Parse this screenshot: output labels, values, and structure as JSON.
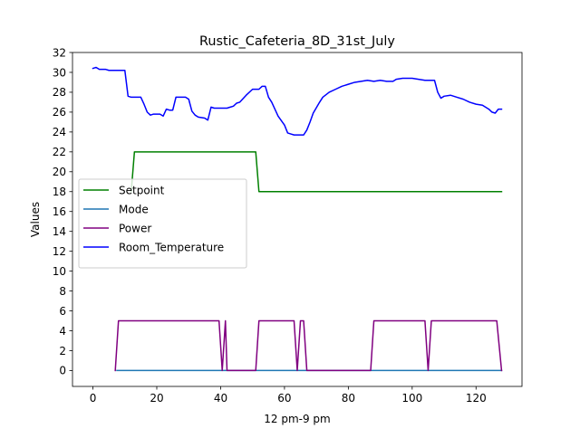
{
  "chart_data": {
    "type": "line",
    "title": "Rustic_Cafeteria_8D_31st_July",
    "xlabel": "12 pm-9 pm",
    "ylabel": "Values",
    "xlim": [
      -6.4,
      134.4
    ],
    "ylim": [
      -1.6,
      32
    ],
    "xticks": [
      0,
      20,
      40,
      60,
      80,
      100,
      120
    ],
    "yticks": [
      0,
      2,
      4,
      6,
      8,
      10,
      12,
      14,
      16,
      18,
      20,
      22,
      24,
      26,
      28,
      30,
      32
    ],
    "grid": false,
    "legend_position": "center-left",
    "series": [
      {
        "name": "Setpoint",
        "color": "#008000",
        "points": [
          [
            12,
            18
          ],
          [
            13,
            22
          ],
          [
            51,
            22
          ],
          [
            52,
            18
          ],
          [
            128,
            18
          ]
        ]
      },
      {
        "name": "Mode",
        "color": "#1f77b4",
        "points": [
          [
            7.5,
            0
          ],
          [
            128,
            0
          ]
        ]
      },
      {
        "name": "Power",
        "color": "#800080",
        "points": [
          [
            7,
            0
          ],
          [
            8,
            5
          ],
          [
            39.5,
            5
          ],
          [
            40.5,
            0
          ],
          [
            41.5,
            5
          ],
          [
            42,
            0
          ],
          [
            51,
            0
          ],
          [
            52,
            5
          ],
          [
            63,
            5
          ],
          [
            64,
            0
          ],
          [
            65,
            5
          ],
          [
            66,
            5
          ],
          [
            67,
            0
          ],
          [
            87,
            0
          ],
          [
            88,
            5
          ],
          [
            104,
            5
          ],
          [
            105,
            0
          ],
          [
            106,
            5
          ],
          [
            126.5,
            5
          ],
          [
            128,
            0
          ]
        ]
      },
      {
        "name": "Room_Temperature",
        "color": "#0000ff",
        "points": [
          [
            0,
            30.4
          ],
          [
            1,
            30.5
          ],
          [
            2,
            30.3
          ],
          [
            4,
            30.3
          ],
          [
            5,
            30.2
          ],
          [
            10,
            30.2
          ],
          [
            11,
            27.6
          ],
          [
            12,
            27.5
          ],
          [
            15,
            27.5
          ],
          [
            16,
            26.8
          ],
          [
            17,
            26.0
          ],
          [
            18,
            25.7
          ],
          [
            19,
            25.8
          ],
          [
            21,
            25.8
          ],
          [
            22,
            25.6
          ],
          [
            23,
            26.3
          ],
          [
            24,
            26.2
          ],
          [
            25,
            26.2
          ],
          [
            26,
            27.5
          ],
          [
            29,
            27.5
          ],
          [
            30,
            27.3
          ],
          [
            31,
            26.1
          ],
          [
            32,
            25.7
          ],
          [
            33,
            25.5
          ],
          [
            35,
            25.4
          ],
          [
            36,
            25.2
          ],
          [
            37,
            26.5
          ],
          [
            38,
            26.4
          ],
          [
            42,
            26.4
          ],
          [
            44,
            26.6
          ],
          [
            45,
            26.9
          ],
          [
            46,
            27.0
          ],
          [
            48,
            27.7
          ],
          [
            50,
            28.3
          ],
          [
            52,
            28.3
          ],
          [
            53,
            28.6
          ],
          [
            54,
            28.6
          ],
          [
            55,
            27.5
          ],
          [
            56,
            27.0
          ],
          [
            58,
            25.6
          ],
          [
            60,
            24.7
          ],
          [
            61,
            23.9
          ],
          [
            62,
            23.8
          ],
          [
            63,
            23.7
          ],
          [
            66,
            23.7
          ],
          [
            67,
            24.2
          ],
          [
            68,
            25.0
          ],
          [
            69,
            25.9
          ],
          [
            71,
            27.0
          ],
          [
            72,
            27.5
          ],
          [
            74,
            28.0
          ],
          [
            76,
            28.3
          ],
          [
            78,
            28.6
          ],
          [
            80,
            28.8
          ],
          [
            82,
            29.0
          ],
          [
            84,
            29.1
          ],
          [
            86,
            29.2
          ],
          [
            88,
            29.1
          ],
          [
            90,
            29.2
          ],
          [
            92,
            29.1
          ],
          [
            94,
            29.1
          ],
          [
            95,
            29.3
          ],
          [
            97,
            29.4
          ],
          [
            100,
            29.4
          ],
          [
            102,
            29.3
          ],
          [
            104,
            29.2
          ],
          [
            107,
            29.2
          ],
          [
            108,
            28.0
          ],
          [
            109,
            27.4
          ],
          [
            110,
            27.6
          ],
          [
            112,
            27.7
          ],
          [
            114,
            27.5
          ],
          [
            116,
            27.3
          ],
          [
            118,
            27.0
          ],
          [
            120,
            26.8
          ],
          [
            122,
            26.7
          ],
          [
            124,
            26.3
          ],
          [
            125,
            26.0
          ],
          [
            126,
            25.9
          ],
          [
            127,
            26.3
          ],
          [
            128,
            26.3
          ]
        ]
      }
    ]
  }
}
